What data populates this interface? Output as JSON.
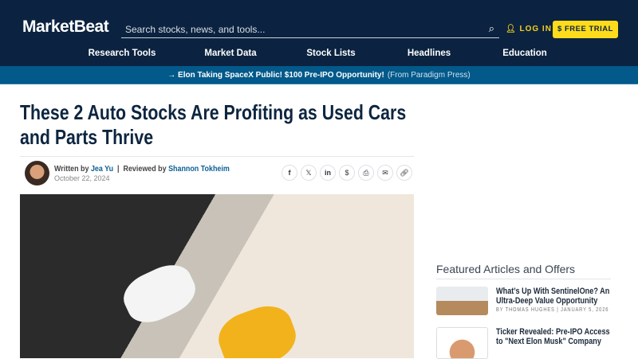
{
  "header": {
    "logo": "MarketBeat",
    "search_placeholder": "Search stocks, news, and tools...",
    "login": "LOG IN",
    "free_trial": "FREE TRIAL"
  },
  "nav": [
    "Research Tools",
    "Market Data",
    "Stock Lists",
    "Headlines",
    "Education"
  ],
  "banner": {
    "headline": "→ Elon Taking SpaceX Public! $100 Pre-IPO Opportunity!",
    "source": "(From Paradigm Press)"
  },
  "article": {
    "title": "These 2 Auto Stocks Are Profiting as Used Cars and Parts Thrive",
    "written_by": "Written by",
    "author": "Jea Yu",
    "reviewed_by": "Reviewed by",
    "reviewer": "Shannon Tokheim",
    "date": "October 22, 2024"
  },
  "share_icons": [
    "facebook-icon",
    "x-icon",
    "linkedin-icon",
    "stocktwits-icon",
    "print-icon",
    "email-icon",
    "link-icon"
  ],
  "sidebar": {
    "title": "Featured Articles and Offers",
    "items": [
      {
        "title": "What’s Up With SentinelOne? An Ultra-Deep Value Opportunity",
        "meta": "BY THOMAS HUGHES | JANUARY 5, 2026"
      },
      {
        "title": "Ticker Revealed: Pre-IPO Access to \"Next Elon Musk\" Company",
        "meta": ""
      }
    ]
  },
  "colors": {
    "header": "#0b2340",
    "banner": "#02598a",
    "accent": "#fedc1c",
    "link": "#0c5f94"
  }
}
